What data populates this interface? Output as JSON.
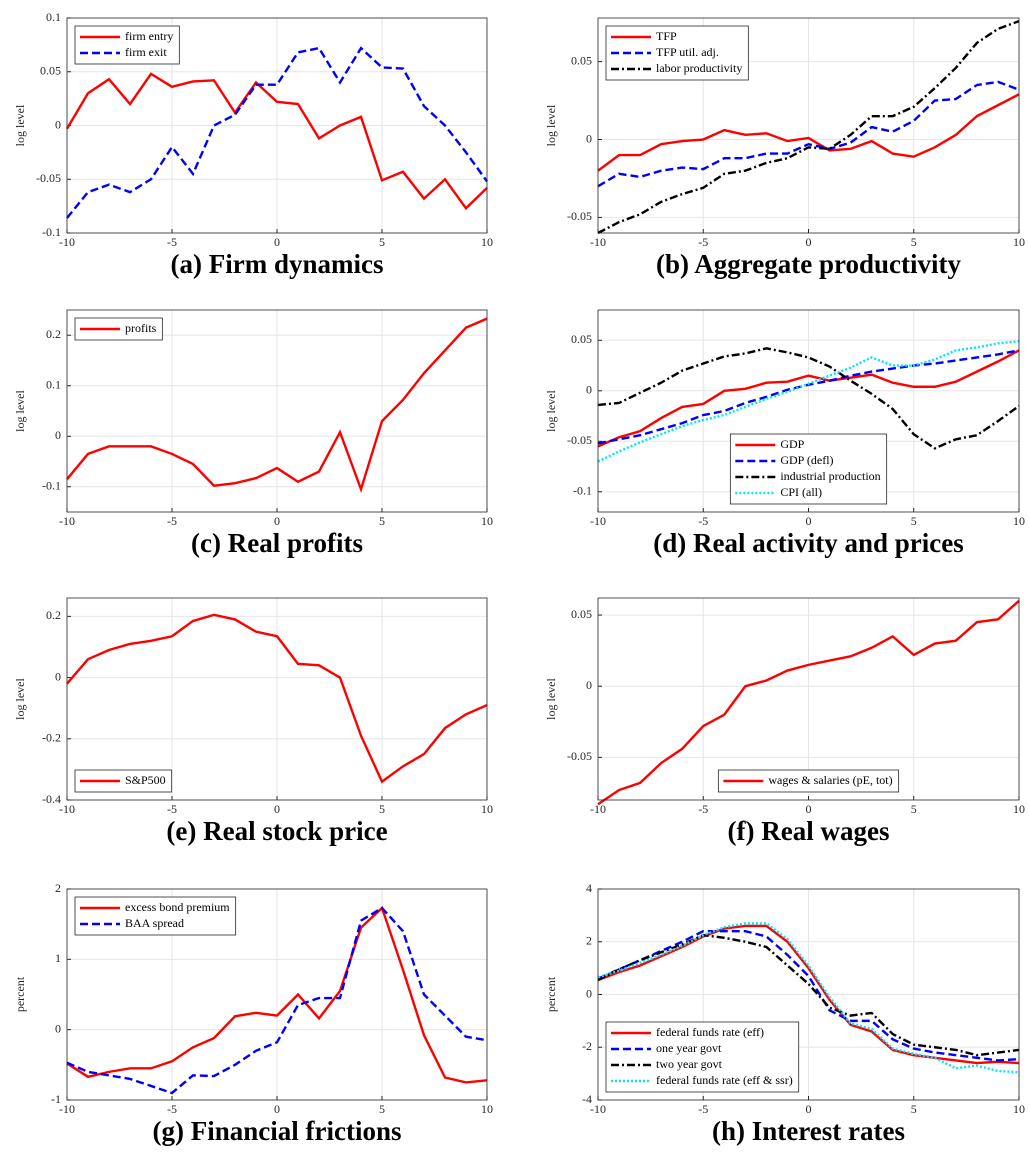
{
  "chart_data": [
    {
      "type": "line",
      "title": "(a) Firm dynamics",
      "y_label": "log level",
      "legend": "upper left",
      "grid": true,
      "x": [
        -10,
        -9,
        -8,
        -7,
        -6,
        -5,
        -4,
        -3,
        -2,
        -1,
        0,
        1,
        2,
        3,
        4,
        5,
        6,
        7,
        8,
        9,
        10
      ],
      "xlim": [
        -10,
        10
      ],
      "xticks": [
        -10,
        -5,
        0,
        5,
        10
      ],
      "ylim": [
        -0.1,
        0.1
      ],
      "yticks": [
        -0.1,
        -0.05,
        0,
        0.05,
        0.1
      ],
      "series": [
        {
          "name": "firm entry",
          "color": "#ff0000",
          "dash": "solid",
          "values": [
            -0.003,
            0.03,
            0.043,
            0.02,
            0.048,
            0.036,
            0.041,
            0.042,
            0.012,
            0.04,
            0.022,
            0.02,
            -0.012,
            0,
            0.008,
            -0.051,
            -0.043,
            -0.068,
            -0.05,
            -0.077,
            -0.058
          ]
        },
        {
          "name": "firm exit",
          "color": "#0000ff",
          "dash": "dashed",
          "values": [
            -0.086,
            -0.062,
            -0.055,
            -0.062,
            -0.05,
            -0.02,
            -0.045,
            0,
            0.01,
            0.038,
            0.038,
            0.068,
            0.072,
            0.04,
            0.072,
            0.054,
            0.053,
            0.018,
            0,
            -0.025,
            -0.052
          ]
        }
      ]
    },
    {
      "type": "line",
      "title": "(b) Aggregate productivity",
      "y_label": "log level",
      "legend": "upper left",
      "grid": true,
      "x": [
        -10,
        -9,
        -8,
        -7,
        -6,
        -5,
        -4,
        -3,
        -2,
        -1,
        0,
        1,
        2,
        3,
        4,
        5,
        6,
        7,
        8,
        9,
        10
      ],
      "xlim": [
        -10,
        10
      ],
      "xticks": [
        -10,
        -5,
        0,
        5,
        10
      ],
      "ylim": [
        -0.06,
        0.078
      ],
      "yticks": [
        -0.05,
        0,
        0.05
      ],
      "series": [
        {
          "name": "TFP",
          "color": "#ff0000",
          "dash": "solid",
          "values": [
            -0.02,
            -0.01,
            -0.01,
            -0.003,
            -0.001,
            0,
            0.006,
            0.003,
            0.004,
            -0.001,
            0.001,
            -0.007,
            -0.006,
            -0.001,
            -0.009,
            -0.011,
            -0.005,
            0.003,
            0.015,
            0.022,
            0.029
          ]
        },
        {
          "name": "TFP util. adj.",
          "color": "#0000ff",
          "dash": "dashed",
          "values": [
            -0.03,
            -0.022,
            -0.024,
            -0.02,
            -0.018,
            -0.019,
            -0.012,
            -0.012,
            -0.009,
            -0.009,
            -0.003,
            -0.006,
            -0.002,
            0.008,
            0.005,
            0.012,
            0.025,
            0.026,
            0.035,
            0.037,
            0.032
          ]
        },
        {
          "name": "labor productivity",
          "color": "#000000",
          "dash": "dashdot",
          "values": [
            -0.06,
            -0.053,
            -0.048,
            -0.04,
            -0.035,
            -0.031,
            -0.022,
            -0.02,
            -0.015,
            -0.012,
            -0.005,
            -0.006,
            0.003,
            0.015,
            0.015,
            0.021,
            0.033,
            0.046,
            0.062,
            0.071,
            0.076
          ]
        }
      ]
    },
    {
      "type": "line",
      "title": "(c) Real profits",
      "y_label": "log level",
      "legend": "upper left",
      "grid": true,
      "x": [
        -10,
        -9,
        -8,
        -7,
        -6,
        -5,
        -4,
        -3,
        -2,
        -1,
        0,
        1,
        2,
        3,
        4,
        5,
        6,
        7,
        8,
        9,
        10
      ],
      "xlim": [
        -10,
        10
      ],
      "xticks": [
        -10,
        -5,
        0,
        5,
        10
      ],
      "ylim": [
        -0.15,
        0.25
      ],
      "yticks": [
        -0.1,
        0,
        0.1,
        0.2
      ],
      "series": [
        {
          "name": "profits",
          "color": "#ff0000",
          "dash": "solid",
          "values": [
            -0.085,
            -0.035,
            -0.02,
            -0.02,
            -0.02,
            -0.035,
            -0.055,
            -0.098,
            -0.093,
            -0.083,
            -0.063,
            -0.09,
            -0.07,
            0.008,
            -0.105,
            0.03,
            0.072,
            0.125,
            0.17,
            0.215,
            0.233
          ]
        }
      ]
    },
    {
      "type": "line",
      "title": "(d) Real activity and prices",
      "y_label": "log level",
      "legend": "lower center",
      "grid": true,
      "x": [
        -10,
        -9,
        -8,
        -7,
        -6,
        -5,
        -4,
        -3,
        -2,
        -1,
        0,
        1,
        2,
        3,
        4,
        5,
        6,
        7,
        8,
        9,
        10
      ],
      "xlim": [
        -10,
        10
      ],
      "xticks": [
        -10,
        -5,
        0,
        5,
        10
      ],
      "ylim": [
        -0.12,
        0.08
      ],
      "yticks": [
        -0.1,
        -0.05,
        0,
        0.05
      ],
      "series": [
        {
          "name": "GDP",
          "color": "#ff0000",
          "dash": "solid",
          "values": [
            -0.055,
            -0.046,
            -0.04,
            -0.027,
            -0.016,
            -0.013,
            0,
            0.002,
            0.008,
            0.009,
            0.015,
            0.01,
            0.013,
            0.016,
            0.008,
            0.004,
            0.004,
            0.009,
            0.019,
            0.029,
            0.04
          ]
        },
        {
          "name": "GDP (defl)",
          "color": "#0000ff",
          "dash": "dashed",
          "values": [
            -0.052,
            -0.048,
            -0.044,
            -0.038,
            -0.032,
            -0.024,
            -0.02,
            -0.012,
            -0.006,
            0.001,
            0.006,
            0.01,
            0.015,
            0.019,
            0.022,
            0.025,
            0.027,
            0.03,
            0.033,
            0.036,
            0.04
          ]
        },
        {
          "name": "industrial production",
          "color": "#000000",
          "dash": "dashdot",
          "values": [
            -0.014,
            -0.012,
            -0.002,
            0.008,
            0.02,
            0.027,
            0.034,
            0.037,
            0.042,
            0.038,
            0.033,
            0.024,
            0.01,
            -0.003,
            -0.018,
            -0.043,
            -0.057,
            -0.048,
            -0.044,
            -0.03,
            -0.015
          ]
        },
        {
          "name": "CPI (all)",
          "color": "#00e5ff",
          "dash": "dotted",
          "values": [
            -0.07,
            -0.06,
            -0.051,
            -0.043,
            -0.035,
            -0.029,
            -0.024,
            -0.016,
            -0.008,
            -0.001,
            0.007,
            0.015,
            0.023,
            0.033,
            0.025,
            0.025,
            0.031,
            0.04,
            0.043,
            0.047,
            0.049
          ]
        }
      ]
    },
    {
      "type": "line",
      "title": "(e) Real stock price",
      "y_label": "log level",
      "legend": "lower left",
      "grid": true,
      "x": [
        -10,
        -9,
        -8,
        -7,
        -6,
        -5,
        -4,
        -3,
        -2,
        -1,
        0,
        1,
        2,
        3,
        4,
        5,
        6,
        7,
        8,
        9,
        10
      ],
      "xlim": [
        -10,
        10
      ],
      "xticks": [
        -10,
        -5,
        0,
        5,
        10
      ],
      "ylim": [
        -0.4,
        0.26
      ],
      "yticks": [
        -0.4,
        -0.2,
        0,
        0.2
      ],
      "series": [
        {
          "name": "S&P500",
          "color": "#ff0000",
          "dash": "solid",
          "values": [
            -0.02,
            0.06,
            0.09,
            0.11,
            0.12,
            0.135,
            0.185,
            0.205,
            0.19,
            0.15,
            0.135,
            0.045,
            0.04,
            0,
            -0.19,
            -0.34,
            -0.29,
            -0.25,
            -0.165,
            -0.12,
            -0.09
          ]
        }
      ]
    },
    {
      "type": "line",
      "title": "(f) Real wages",
      "y_label": "log level",
      "legend": "lower center",
      "grid": true,
      "x": [
        -10,
        -9,
        -8,
        -7,
        -6,
        -5,
        -4,
        -3,
        -2,
        -1,
        0,
        1,
        2,
        3,
        4,
        5,
        6,
        7,
        8,
        9,
        10
      ],
      "xlim": [
        -10,
        10
      ],
      "xticks": [
        -10,
        -5,
        0,
        5,
        10
      ],
      "ylim": [
        -0.08,
        0.062
      ],
      "yticks": [
        -0.05,
        0,
        0.05
      ],
      "series": [
        {
          "name": "wages & salaries (pE, tot)",
          "color": "#ff0000",
          "dash": "solid",
          "values": [
            -0.083,
            -0.073,
            -0.068,
            -0.054,
            -0.044,
            -0.028,
            -0.02,
            0,
            0.004,
            0.011,
            0.015,
            0.018,
            0.021,
            0.027,
            0.035,
            0.022,
            0.03,
            0.032,
            0.045,
            0.047,
            0.06
          ]
        }
      ]
    },
    {
      "type": "line",
      "title": "(g) Financial frictions",
      "y_label": "percent",
      "legend": "upper left",
      "grid": true,
      "x": [
        -10,
        -9,
        -8,
        -7,
        -6,
        -5,
        -4,
        -3,
        -2,
        -1,
        0,
        1,
        2,
        3,
        4,
        5,
        6,
        7,
        8,
        9,
        10
      ],
      "xlim": [
        -10,
        10
      ],
      "xticks": [
        -10,
        -5,
        0,
        5,
        10
      ],
      "ylim": [
        -1,
        2
      ],
      "yticks": [
        -1,
        0,
        1,
        2
      ],
      "series": [
        {
          "name": "excess bond premium",
          "color": "#ff0000",
          "dash": "solid",
          "values": [
            -0.48,
            -0.67,
            -0.6,
            -0.55,
            -0.55,
            -0.45,
            -0.25,
            -0.12,
            0.19,
            0.24,
            0.2,
            0.5,
            0.16,
            0.55,
            1.45,
            1.73,
            0.85,
            -0.08,
            -0.68,
            -0.75,
            -0.72
          ]
        },
        {
          "name": "BAA spread",
          "color": "#0000ff",
          "dash": "dashed",
          "values": [
            -0.47,
            -0.6,
            -0.65,
            -0.7,
            -0.8,
            -0.9,
            -0.65,
            -0.66,
            -0.5,
            -0.3,
            -0.18,
            0.35,
            0.45,
            0.45,
            1.55,
            1.73,
            1.4,
            0.5,
            0.2,
            -0.1,
            -0.15
          ]
        }
      ]
    },
    {
      "type": "line",
      "title": "(h) Interest rates",
      "y_label": "percent",
      "legend": "lower left",
      "grid": true,
      "x": [
        -10,
        -9,
        -8,
        -7,
        -6,
        -5,
        -4,
        -3,
        -2,
        -1,
        0,
        1,
        2,
        3,
        4,
        5,
        6,
        7,
        8,
        9,
        10
      ],
      "xlim": [
        -10,
        10
      ],
      "xticks": [
        -10,
        -5,
        0,
        5,
        10
      ],
      "ylim": [
        -4,
        4
      ],
      "yticks": [
        -4,
        -2,
        0,
        2,
        4
      ],
      "series": [
        {
          "name": "federal funds rate (eff)",
          "color": "#ff0000",
          "dash": "solid",
          "values": [
            0.55,
            0.85,
            1.1,
            1.45,
            1.8,
            2.2,
            2.5,
            2.6,
            2.6,
            2,
            1,
            -0.2,
            -1.15,
            -1.4,
            -2.1,
            -2.3,
            -2.4,
            -2.5,
            -2.6,
            -2.55,
            -2.6
          ]
        },
        {
          "name": "one year govt",
          "color": "#0000ff",
          "dash": "dashed",
          "values": [
            0.6,
            0.95,
            1.3,
            1.65,
            2,
            2.4,
            2.4,
            2.4,
            2.2,
            1.5,
            0.7,
            -0.6,
            -1,
            -1,
            -1.7,
            -2.05,
            -2.2,
            -2.3,
            -2.4,
            -2.5,
            -2.45
          ]
        },
        {
          "name": "two year govt",
          "color": "#000000",
          "dash": "dashdot",
          "values": [
            0.55,
            0.95,
            1.3,
            1.6,
            1.9,
            2.25,
            2.15,
            2,
            1.8,
            1.1,
            0.4,
            -0.5,
            -0.8,
            -0.7,
            -1.5,
            -1.9,
            -2,
            -2.1,
            -2.3,
            -2.2,
            -2.1
          ]
        },
        {
          "name": "federal funds rate (eff & ssr)",
          "color": "#00e5ff",
          "dash": "dotted",
          "values": [
            0.65,
            0.9,
            1.2,
            1.5,
            1.85,
            2.25,
            2.55,
            2.7,
            2.7,
            2.1,
            1.1,
            -0.1,
            -1.1,
            -1.3,
            -2.05,
            -2.25,
            -2.4,
            -2.8,
            -2.7,
            -2.9,
            -2.95
          ]
        }
      ]
    }
  ]
}
